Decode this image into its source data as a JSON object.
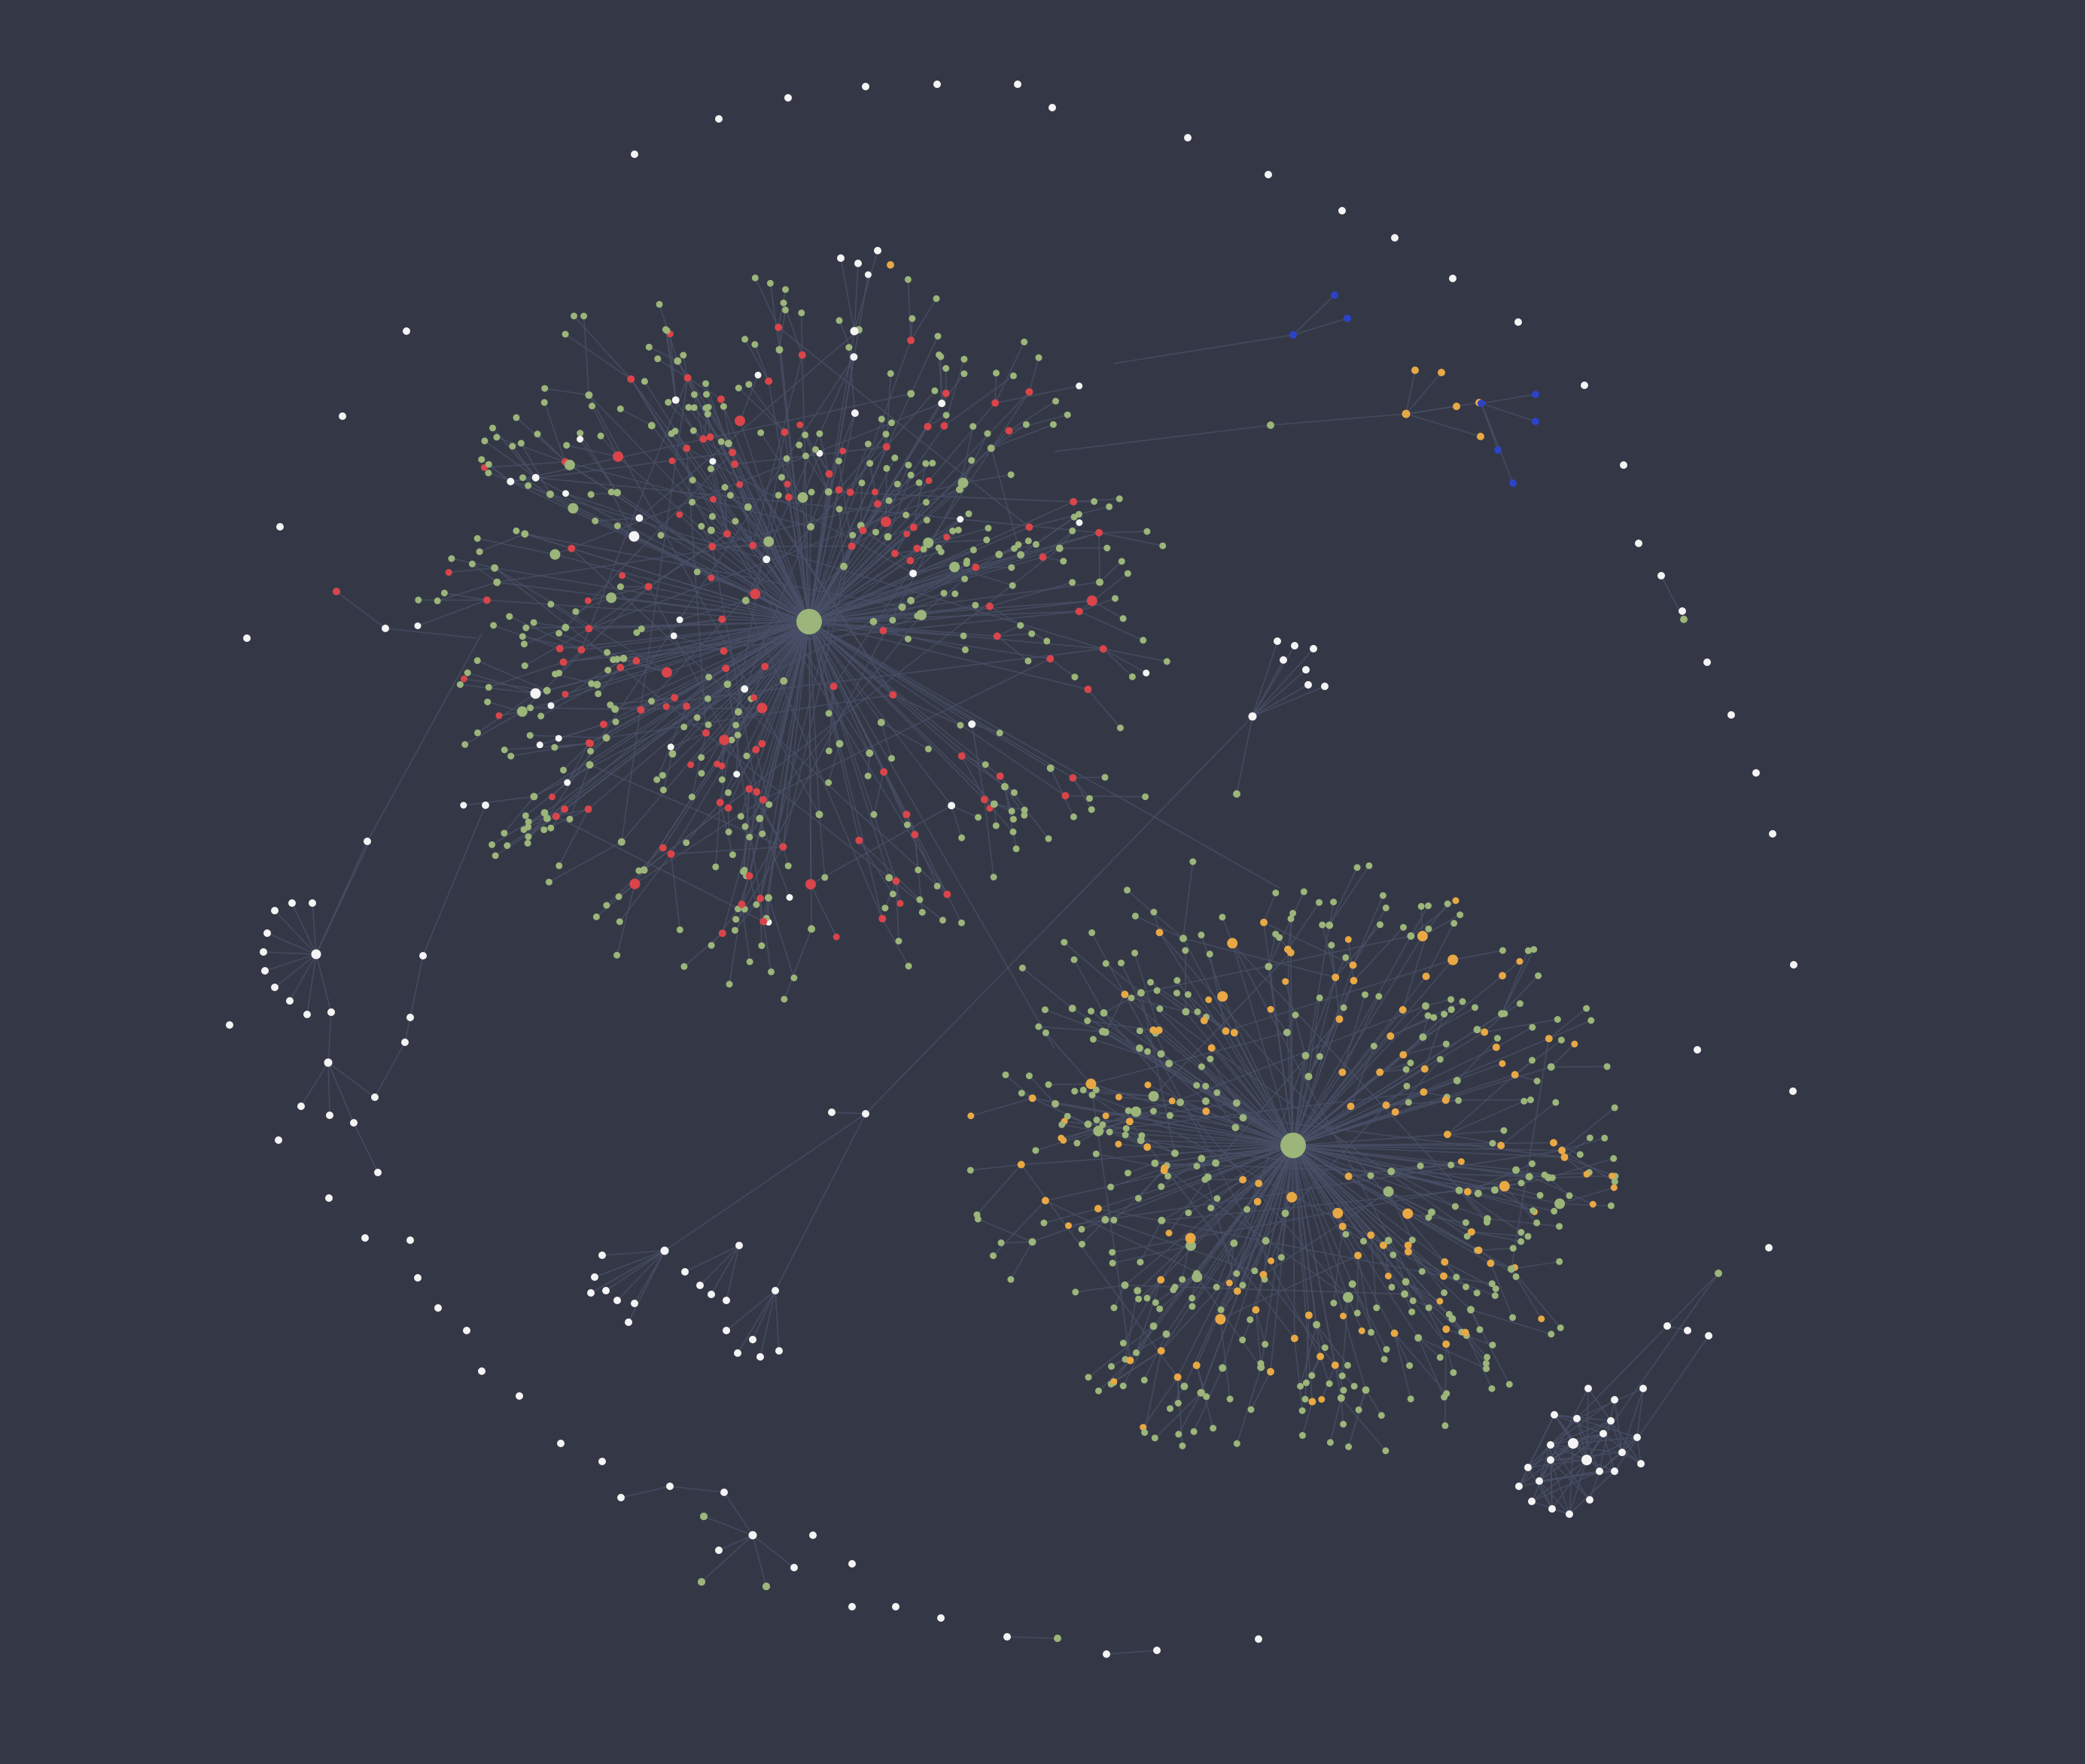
{
  "graph": {
    "background": "#343846",
    "edge_color": "#4a5068",
    "palette": {
      "green": "#9bb57a",
      "red": "#d9454a",
      "orange": "#e8a844",
      "white": "#f4f4f4",
      "blue": "#2c43c8"
    },
    "clusters": [
      {
        "id": "cluster-a",
        "hub_color": "green",
        "leaf_colors": [
          "green",
          "red",
          "white"
        ],
        "approx_nodes": 520
      },
      {
        "id": "cluster-b",
        "hub_color": "green",
        "leaf_colors": [
          "green",
          "orange"
        ],
        "approx_nodes": 440
      },
      {
        "id": "cluster-c",
        "hub_color": "white",
        "leaf_colors": [
          "white"
        ],
        "approx_nodes": 30
      },
      {
        "id": "cluster-d",
        "hub_color": "blue",
        "leaf_colors": [
          "green",
          "blue",
          "orange"
        ],
        "approx_nodes": 18
      }
    ],
    "isolated_nodes_color": "white"
  }
}
